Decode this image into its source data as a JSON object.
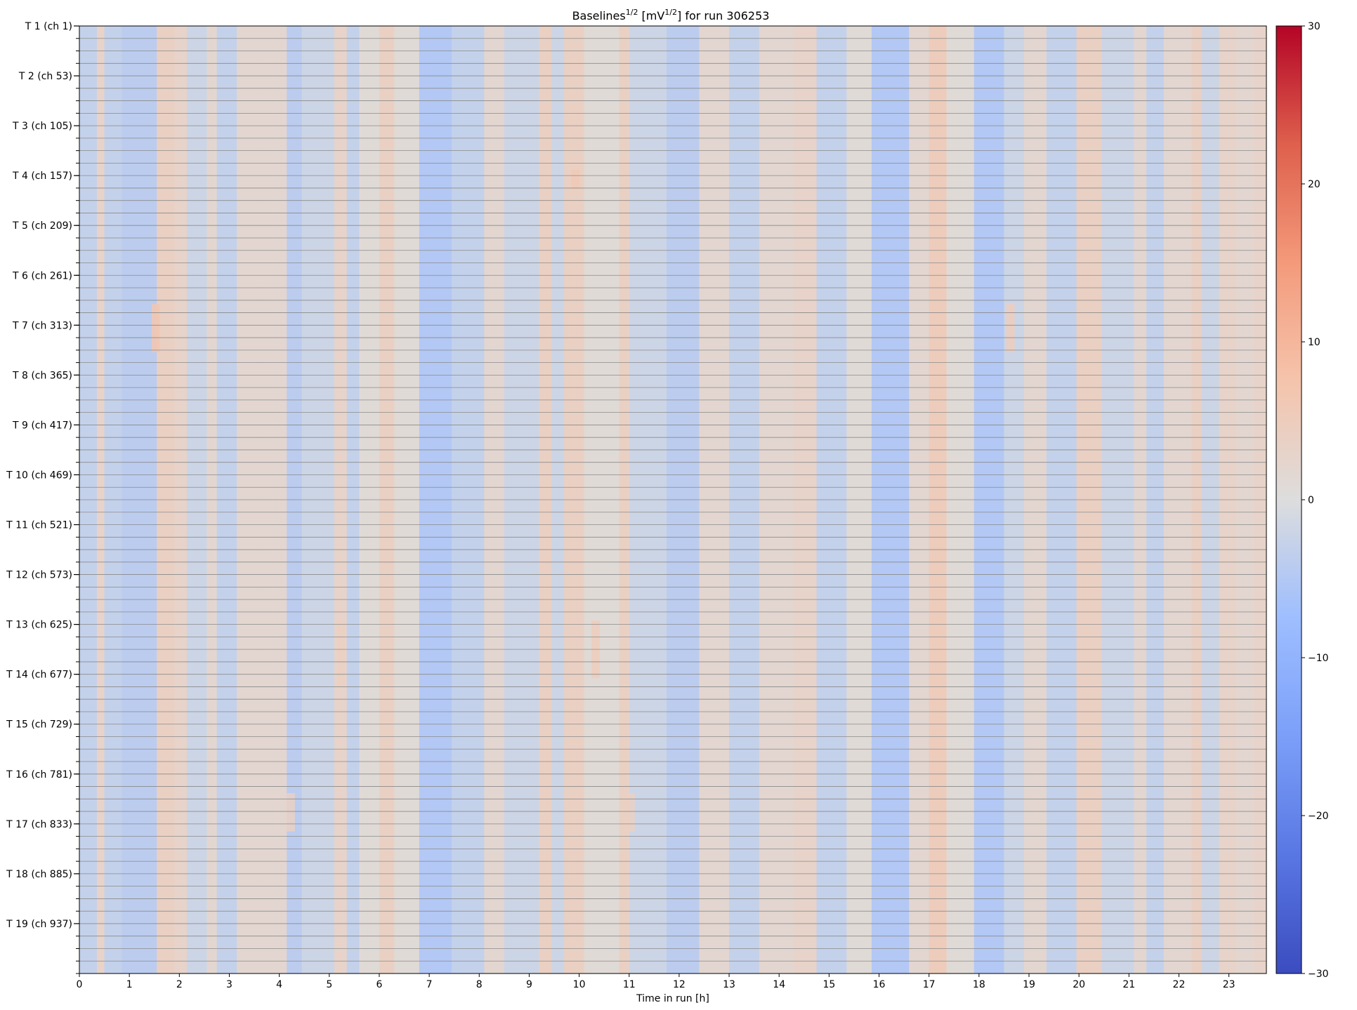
{
  "chart_data": {
    "type": "heatmap",
    "title": {
      "base": "Baselines",
      "exp1": "1/2",
      "mid": " [mV",
      "exp2": "1/2",
      "tail": "] for run 306253"
    },
    "xlabel": "Time in run [h]",
    "x_ticks": [
      0,
      1,
      2,
      3,
      4,
      5,
      6,
      7,
      8,
      9,
      10,
      11,
      12,
      13,
      14,
      15,
      16,
      17,
      18,
      19,
      20,
      21,
      22,
      23
    ],
    "xlim": [
      0,
      23.75
    ],
    "y_tick_labels": [
      "T 1 (ch 1)",
      "T 2 (ch 53)",
      "T 3 (ch 105)",
      "T 4 (ch 157)",
      "T 5 (ch 209)",
      "T 6 (ch 261)",
      "T 7 (ch 313)",
      "T 8 (ch 365)",
      "T 9 (ch 417)",
      "T 10 (ch 469)",
      "T 11 (ch 521)",
      "T 12 (ch 573)",
      "T 13 (ch 625)",
      "T 14 (ch 677)",
      "T 15 (ch 729)",
      "T 16 (ch 781)",
      "T 17 (ch 833)",
      "T 18 (ch 885)",
      "T 19 (ch 937)"
    ],
    "channels": 988,
    "channels_per_tile": 52,
    "colorbar": {
      "min": -30,
      "max": 30,
      "ticks": [
        30,
        20,
        10,
        0,
        -10,
        -20,
        -30
      ],
      "colormap": "coolwarm"
    },
    "column_profile": [
      {
        "from": 0.0,
        "to": 0.35,
        "value": -3
      },
      {
        "from": 0.35,
        "to": 0.5,
        "value": 3
      },
      {
        "from": 0.5,
        "to": 0.85,
        "value": -3
      },
      {
        "from": 0.85,
        "to": 1.25,
        "value": -4
      },
      {
        "from": 1.25,
        "to": 1.55,
        "value": -4
      },
      {
        "from": 1.55,
        "to": 1.9,
        "value": 4
      },
      {
        "from": 1.9,
        "to": 2.15,
        "value": 3
      },
      {
        "from": 2.15,
        "to": 2.55,
        "value": -2
      },
      {
        "from": 2.55,
        "to": 2.75,
        "value": 2
      },
      {
        "from": 2.75,
        "to": 3.15,
        "value": -3
      },
      {
        "from": 3.15,
        "to": 3.6,
        "value": 2
      },
      {
        "from": 3.6,
        "to": 4.15,
        "value": 2
      },
      {
        "from": 4.15,
        "to": 4.45,
        "value": -4
      },
      {
        "from": 4.45,
        "to": 5.1,
        "value": -2
      },
      {
        "from": 5.1,
        "to": 5.35,
        "value": 3
      },
      {
        "from": 5.35,
        "to": 5.6,
        "value": -3
      },
      {
        "from": 5.6,
        "to": 6.0,
        "value": 1
      },
      {
        "from": 6.0,
        "to": 6.3,
        "value": 4
      },
      {
        "from": 6.3,
        "to": 6.8,
        "value": 1
      },
      {
        "from": 6.8,
        "to": 7.45,
        "value": -5
      },
      {
        "from": 7.45,
        "to": 8.1,
        "value": -3
      },
      {
        "from": 8.1,
        "to": 8.5,
        "value": 2
      },
      {
        "from": 8.5,
        "to": 9.2,
        "value": -2
      },
      {
        "from": 9.2,
        "to": 9.45,
        "value": 4
      },
      {
        "from": 9.45,
        "to": 9.7,
        "value": -2
      },
      {
        "from": 9.7,
        "to": 10.1,
        "value": 4
      },
      {
        "from": 10.1,
        "to": 10.8,
        "value": 1
      },
      {
        "from": 10.8,
        "to": 11.0,
        "value": 4
      },
      {
        "from": 11.0,
        "to": 11.75,
        "value": -2
      },
      {
        "from": 11.75,
        "to": 12.4,
        "value": -4
      },
      {
        "from": 12.4,
        "to": 13.0,
        "value": 2
      },
      {
        "from": 13.0,
        "to": 13.6,
        "value": -3
      },
      {
        "from": 13.6,
        "to": 14.3,
        "value": 2
      },
      {
        "from": 14.3,
        "to": 14.75,
        "value": 3
      },
      {
        "from": 14.75,
        "to": 15.35,
        "value": -3
      },
      {
        "from": 15.35,
        "to": 15.85,
        "value": 1
      },
      {
        "from": 15.85,
        "to": 16.6,
        "value": -5
      },
      {
        "from": 16.6,
        "to": 17.0,
        "value": 2
      },
      {
        "from": 17.0,
        "to": 17.35,
        "value": 5
      },
      {
        "from": 17.35,
        "to": 17.9,
        "value": 1
      },
      {
        "from": 17.9,
        "to": 18.5,
        "value": -5
      },
      {
        "from": 18.5,
        "to": 18.9,
        "value": -2
      },
      {
        "from": 18.9,
        "to": 19.35,
        "value": 2
      },
      {
        "from": 19.35,
        "to": 19.95,
        "value": -3
      },
      {
        "from": 19.95,
        "to": 20.45,
        "value": 4
      },
      {
        "from": 20.45,
        "to": 21.1,
        "value": -2
      },
      {
        "from": 21.1,
        "to": 21.35,
        "value": 2
      },
      {
        "from": 21.35,
        "to": 21.7,
        "value": -3
      },
      {
        "from": 21.7,
        "to": 22.25,
        "value": 2
      },
      {
        "from": 22.25,
        "to": 22.45,
        "value": 4
      },
      {
        "from": 22.45,
        "to": 22.8,
        "value": -2
      },
      {
        "from": 22.8,
        "to": 23.15,
        "value": 3
      },
      {
        "from": 23.15,
        "to": 23.5,
        "value": 2
      },
      {
        "from": 23.5,
        "to": 23.75,
        "value": 3
      }
    ],
    "hot_spots": [
      {
        "t": 1.5,
        "ch_from": 290,
        "ch_to": 340,
        "value": 7
      },
      {
        "t": 9.9,
        "ch_from": 150,
        "ch_to": 170,
        "value": 6
      },
      {
        "t": 10.3,
        "ch_from": 620,
        "ch_to": 680,
        "value": 5
      },
      {
        "t": 5.2,
        "ch_from": 620,
        "ch_to": 690,
        "value": 4
      },
      {
        "t": 18.6,
        "ch_from": 290,
        "ch_to": 340,
        "value": 5
      },
      {
        "t": 11.0,
        "ch_from": 800,
        "ch_to": 840,
        "value": 4
      },
      {
        "t": 4.2,
        "ch_from": 800,
        "ch_to": 840,
        "value": 4
      }
    ]
  }
}
